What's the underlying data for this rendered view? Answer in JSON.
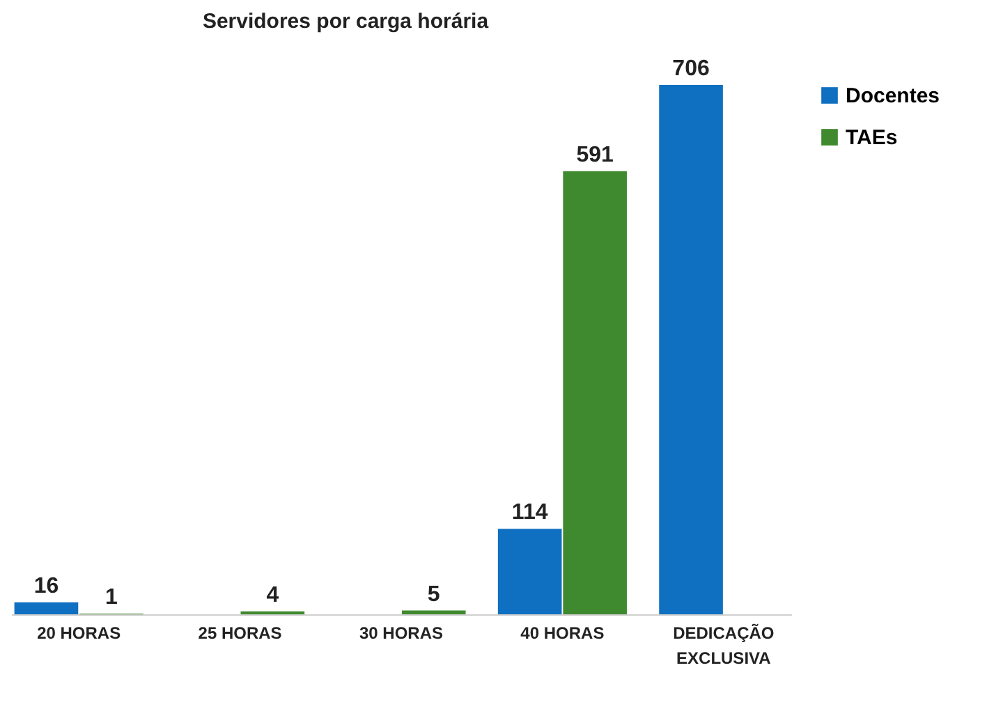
{
  "chart_data": {
    "type": "bar",
    "title": "Servidores por carga horária",
    "categories": [
      "20 HORAS",
      "25 HORAS",
      "30 HORAS",
      "40 HORAS",
      "DEDICAÇÃO EXCLUSIVA"
    ],
    "series": [
      {
        "name": "Docentes",
        "color": "#0f6fc0",
        "values": [
          16,
          null,
          null,
          114,
          706
        ]
      },
      {
        "name": "TAEs",
        "color": "#3f8a2e",
        "values": [
          1,
          4,
          5,
          591,
          null
        ]
      }
    ],
    "data_labels": true,
    "legend": "right",
    "grid": false
  }
}
